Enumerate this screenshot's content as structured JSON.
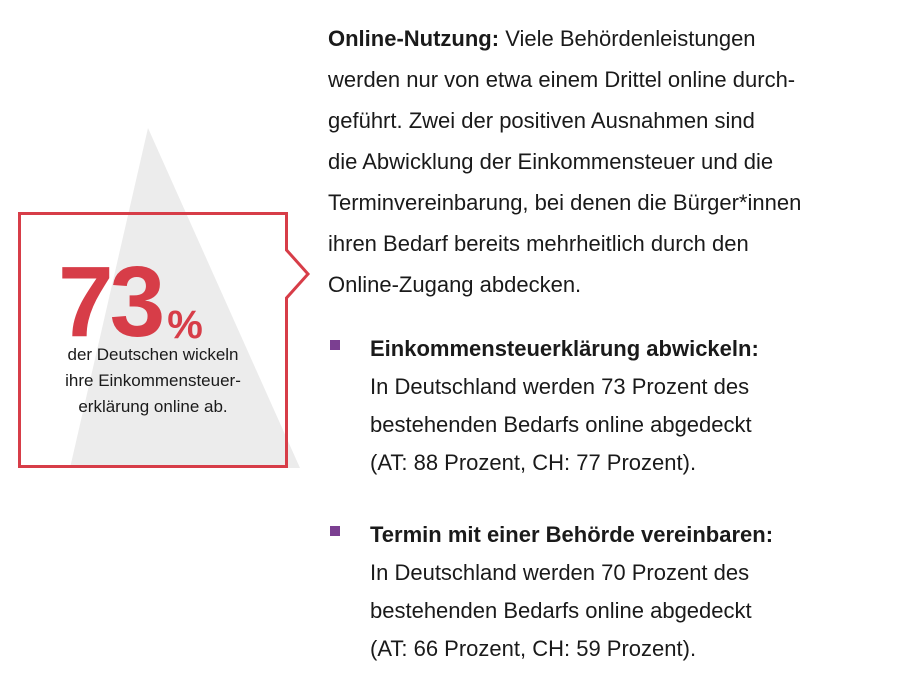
{
  "colors": {
    "accent": "#d73d48",
    "bullet": "#7b3f91",
    "triangle": "#ececec",
    "text": "#1a1a1a"
  },
  "callout": {
    "value": "73",
    "unit": "%",
    "caption_lines": [
      "der Deutschen wickeln",
      "ihre Einkommensteuer-",
      "erklärung online ab."
    ]
  },
  "intro": {
    "lead": "Online-Nutzung:",
    "lines": [
      " Viele Behördenleistungen",
      "werden nur von etwa einem Drittel online durch-",
      "geführt. Zwei der positiven Ausnahmen sind",
      "die Abwicklung der Einkommensteuer und die",
      "Terminvereinbarung, bei denen die Bürger*innen",
      "ihren Bedarf bereits mehrheitlich durch den",
      "Online-Zugang abdecken."
    ]
  },
  "bullets": [
    {
      "title": "Einkommensteuerklärung abwickeln:",
      "lines": [
        "In Deutschland werden 73 Prozent des",
        "bestehenden Bedarfs online abgedeckt",
        "(AT: 88 Prozent, CH: 77 Prozent)."
      ]
    },
    {
      "title": "Termin mit einer Behörde vereinbaren:",
      "lines": [
        "In Deutschland werden 70 Prozent des",
        "bestehenden Bedarfs online abgedeckt",
        "(AT: 66 Prozent, CH: 59 Prozent)."
      ]
    }
  ]
}
